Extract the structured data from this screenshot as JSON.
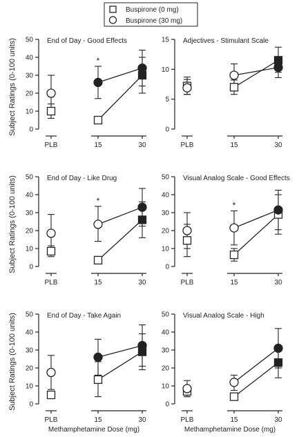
{
  "legend": {
    "items": [
      {
        "label": "Buspirone (0 mg)",
        "marker": "open-square"
      },
      {
        "label": "Buspirone (30 mg)",
        "marker": "open-circle"
      }
    ]
  },
  "axes_text": {
    "ylabel": "Subject Ratings (0-100 units)",
    "xlabel": "Methamphetamine Dose (mg)",
    "categories": [
      "PLB",
      "15",
      "30"
    ]
  },
  "colors": {
    "open_marker_fill": "#ffffff",
    "filled_marker": "#222222",
    "line": "#222222"
  },
  "chart_data": [
    {
      "type": "line",
      "title": "End of Day - Good Effects",
      "ylim": [
        0,
        50
      ],
      "yticks": [
        0,
        10,
        20,
        30,
        40,
        50
      ],
      "categories": [
        "PLB",
        "15",
        "30"
      ],
      "significant": [
        "15"
      ],
      "series": [
        {
          "name": "Buspirone (0 mg)",
          "values": [
            10,
            5,
            30
          ],
          "lower": [
            6,
            3,
            20
          ],
          "upper": [
            14,
            7,
            40
          ],
          "filled": [
            false,
            false,
            true
          ]
        },
        {
          "name": "Buspirone (30 mg)",
          "values": [
            20,
            26,
            34
          ],
          "lower": [
            10,
            17,
            24
          ],
          "upper": [
            30,
            35,
            44
          ],
          "filled": [
            false,
            true,
            true
          ]
        }
      ]
    },
    {
      "type": "line",
      "title": "Adjectives - Stimulant Scale",
      "ylim": [
        0,
        15
      ],
      "yticks": [
        0,
        5,
        10,
        15
      ],
      "categories": [
        "PLB",
        "15",
        "30"
      ],
      "significant": [],
      "series": [
        {
          "name": "Buspirone (0 mg)",
          "values": [
            7.2,
            7,
            11.5
          ],
          "lower": [
            5.8,
            5.8,
            9.5
          ],
          "upper": [
            8.7,
            8.2,
            13.7
          ],
          "filled": [
            false,
            false,
            true
          ]
        },
        {
          "name": "Buspirone (30 mg)",
          "values": [
            6.9,
            9.0,
            10.3
          ],
          "lower": [
            5.8,
            7.2,
            8.6
          ],
          "upper": [
            8.3,
            10.9,
            12.0
          ],
          "filled": [
            false,
            false,
            true
          ]
        }
      ]
    },
    {
      "type": "line",
      "title": "End of Day - Like Drug",
      "ylim": [
        0,
        50
      ],
      "yticks": [
        0,
        10,
        20,
        30,
        40,
        50
      ],
      "categories": [
        "PLB",
        "15",
        "30"
      ],
      "significant": [
        "15"
      ],
      "series": [
        {
          "name": "Buspirone (0 mg)",
          "values": [
            8.5,
            3.5,
            26
          ],
          "lower": [
            5.5,
            1.5,
            16
          ],
          "upper": [
            11.5,
            5.5,
            36
          ],
          "filled": [
            false,
            false,
            true
          ]
        },
        {
          "name": "Buspirone (30 mg)",
          "values": [
            18.5,
            23.5,
            33
          ],
          "lower": [
            8.5,
            14,
            22.5
          ],
          "upper": [
            29,
            33.5,
            43.5
          ],
          "filled": [
            false,
            false,
            true
          ]
        }
      ]
    },
    {
      "type": "line",
      "title": "Visual Analog Scale - Good Effects",
      "ylim": [
        0,
        50
      ],
      "yticks": [
        0,
        10,
        20,
        30,
        40,
        50
      ],
      "categories": [
        "PLB",
        "15",
        "30"
      ],
      "significant": [
        "15"
      ],
      "series": [
        {
          "name": "Buspirone (0 mg)",
          "values": [
            14.5,
            6.5,
            29
          ],
          "lower": [
            5.5,
            3,
            18
          ],
          "upper": [
            23.5,
            10,
            40
          ],
          "filled": [
            false,
            false,
            false
          ]
        },
        {
          "name": "Buspirone (30 mg)",
          "values": [
            20,
            21.5,
            31.5
          ],
          "lower": [
            10,
            12,
            20.5
          ],
          "upper": [
            30,
            31,
            42.5
          ],
          "filled": [
            false,
            false,
            true
          ]
        }
      ]
    },
    {
      "type": "line",
      "title": "End of Day - Take Again",
      "ylim": [
        0,
        50
      ],
      "yticks": [
        0,
        10,
        20,
        30,
        40,
        50
      ],
      "categories": [
        "PLB",
        "15",
        "30"
      ],
      "significant": [],
      "series": [
        {
          "name": "Buspirone (0 mg)",
          "values": [
            5,
            13.5,
            29
          ],
          "lower": [
            3,
            4,
            19
          ],
          "upper": [
            7,
            23.5,
            39
          ],
          "filled": [
            false,
            false,
            true
          ]
        },
        {
          "name": "Buspirone (30 mg)",
          "values": [
            17.5,
            26,
            32.5
          ],
          "lower": [
            8,
            16,
            21
          ],
          "upper": [
            27,
            36,
            44
          ],
          "filled": [
            false,
            true,
            true
          ]
        }
      ]
    },
    {
      "type": "line",
      "title": "Visual Analog Scale - High",
      "ylim": [
        0,
        50
      ],
      "yticks": [
        0,
        10,
        20,
        30,
        40,
        50
      ],
      "categories": [
        "PLB",
        "15",
        "30"
      ],
      "significant": [],
      "series": [
        {
          "name": "Buspirone (0 mg)",
          "values": [
            7,
            4,
            23
          ],
          "lower": [
            4,
            2,
            14.5
          ],
          "upper": [
            10,
            6,
            31.5
          ],
          "filled": [
            false,
            false,
            true
          ]
        },
        {
          "name": "Buspirone (30 mg)",
          "values": [
            8.5,
            12,
            31
          ],
          "lower": [
            4,
            7.5,
            20
          ],
          "upper": [
            13,
            16,
            42
          ],
          "filled": [
            false,
            false,
            true
          ]
        }
      ]
    }
  ]
}
